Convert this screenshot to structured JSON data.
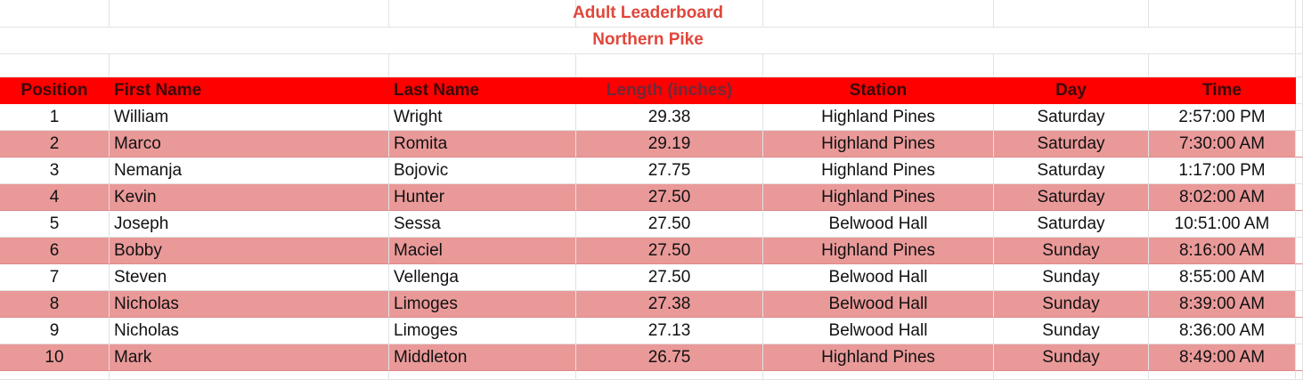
{
  "title": "Adult Leaderboard",
  "subtitle": "Northern Pike",
  "headers": [
    "Position",
    "First Name",
    "Last Name",
    "Length (inches)",
    "Station",
    "Day",
    "Time"
  ],
  "rows": [
    [
      "1",
      "William",
      "Wright",
      "29.38",
      "Highland Pines",
      "Saturday",
      "2:57:00 PM"
    ],
    [
      "2",
      "Marco",
      "Romita",
      "29.19",
      "Highland Pines",
      "Saturday",
      "7:30:00 AM"
    ],
    [
      "3",
      "Nemanja",
      "Bojovic",
      "27.75",
      "Highland Pines",
      "Saturday",
      "1:17:00 PM"
    ],
    [
      "4",
      "Kevin",
      "Hunter",
      "27.50",
      "Highland Pines",
      "Saturday",
      "8:02:00 AM"
    ],
    [
      "5",
      "Joseph",
      "Sessa",
      "27.50",
      "Belwood Hall",
      "Saturday",
      "10:51:00 AM"
    ],
    [
      "6",
      "Bobby",
      "Maciel",
      "27.50",
      "Highland Pines",
      "Sunday",
      "8:16:00 AM"
    ],
    [
      "7",
      "Steven",
      "Vellenga",
      "27.50",
      "Belwood Hall",
      "Sunday",
      "8:55:00 AM"
    ],
    [
      "8",
      "Nicholas",
      "Limoges",
      "27.38",
      "Belwood Hall",
      "Sunday",
      "8:39:00 AM"
    ],
    [
      "9",
      "Nicholas",
      "Limoges",
      "27.13",
      "Belwood Hall",
      "Sunday",
      "8:36:00 AM"
    ],
    [
      "10",
      "Mark",
      "Middleton",
      "26.75",
      "Highland Pines",
      "Sunday",
      "8:49:00 AM"
    ]
  ],
  "colors": {
    "header_bg": "#ff0000",
    "alt_row": "#ea9999",
    "title": "#e0463b"
  }
}
